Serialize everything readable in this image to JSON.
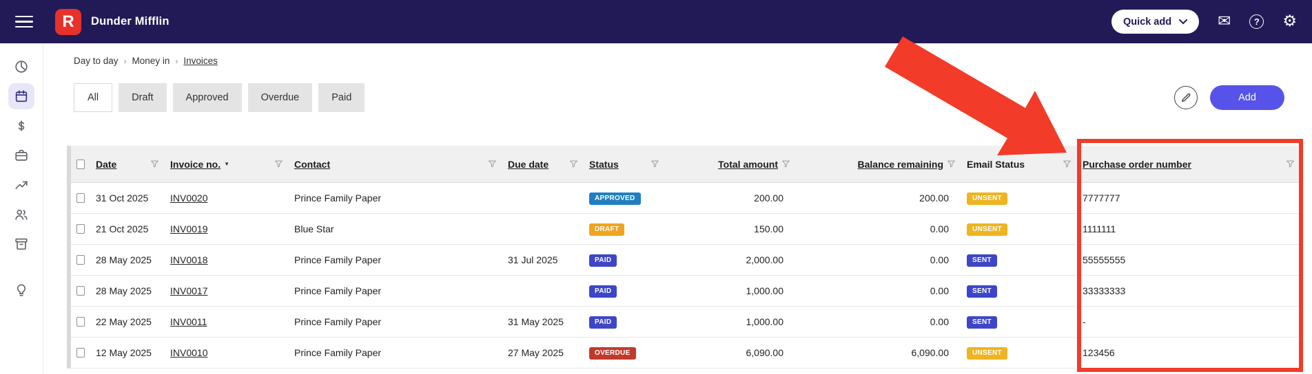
{
  "topbar": {
    "brand": "Dunder Mifflin",
    "logo_letter": "R",
    "quick_add_label": "Quick add",
    "icons": [
      "menu-icon",
      "mail-icon",
      "help-icon",
      "settings-icon"
    ]
  },
  "sidebar": {
    "items": [
      {
        "icon": "pie-chart-icon",
        "active": false
      },
      {
        "icon": "calendar-icon",
        "active": true
      },
      {
        "icon": "dollar-icon",
        "active": false
      },
      {
        "icon": "briefcase-icon",
        "active": false
      },
      {
        "icon": "trending-up-icon",
        "active": false
      },
      {
        "icon": "people-icon",
        "active": false
      },
      {
        "icon": "archive-icon",
        "active": false
      },
      {
        "icon": "lightbulb-icon",
        "active": false
      }
    ]
  },
  "breadcrumb": [
    "Day to day",
    "Money in",
    "Invoices"
  ],
  "tabs": [
    {
      "label": "All",
      "active": true
    },
    {
      "label": "Draft",
      "active": false
    },
    {
      "label": "Approved",
      "active": false
    },
    {
      "label": "Overdue",
      "active": false
    },
    {
      "label": "Paid",
      "active": false
    }
  ],
  "actions": {
    "add_label": "Add"
  },
  "table": {
    "columns": [
      {
        "key": "date",
        "label": "Date",
        "align": "left",
        "underline": true,
        "sorted": false
      },
      {
        "key": "invoice_no",
        "label": "Invoice no.",
        "align": "left",
        "underline": true,
        "sorted": true
      },
      {
        "key": "contact",
        "label": "Contact",
        "align": "left",
        "underline": true,
        "sorted": false
      },
      {
        "key": "due_date",
        "label": "Due date",
        "align": "left",
        "underline": true,
        "sorted": false
      },
      {
        "key": "status",
        "label": "Status",
        "align": "left",
        "underline": true,
        "sorted": false
      },
      {
        "key": "total",
        "label": "Total amount",
        "align": "right",
        "underline": true,
        "sorted": false
      },
      {
        "key": "balance",
        "label": "Balance remaining",
        "align": "right",
        "underline": true,
        "sorted": false
      },
      {
        "key": "email_status",
        "label": "Email Status",
        "align": "left",
        "underline": false,
        "sorted": false
      },
      {
        "key": "po",
        "label": "Purchase order number",
        "align": "left",
        "underline": true,
        "sorted": false
      }
    ],
    "rows": [
      {
        "date": "31 Oct 2025",
        "invoice_no": "INV0020",
        "contact": "Prince Family Paper",
        "due_date": "",
        "status": "APPROVED",
        "total": "200.00",
        "balance": "200.00",
        "email_status": "UNSENT",
        "po": "7777777"
      },
      {
        "date": "21 Oct 2025",
        "invoice_no": "INV0019",
        "contact": "Blue Star",
        "due_date": "",
        "status": "DRAFT",
        "total": "150.00",
        "balance": "0.00",
        "email_status": "UNSENT",
        "po": "1111111"
      },
      {
        "date": "28 May 2025",
        "invoice_no": "INV0018",
        "contact": "Prince Family Paper",
        "due_date": "31 Jul 2025",
        "status": "PAID",
        "total": "2,000.00",
        "balance": "0.00",
        "email_status": "SENT",
        "po": "55555555"
      },
      {
        "date": "28 May 2025",
        "invoice_no": "INV0017",
        "contact": "Prince Family Paper",
        "due_date": "",
        "status": "PAID",
        "total": "1,000.00",
        "balance": "0.00",
        "email_status": "SENT",
        "po": "33333333"
      },
      {
        "date": "22 May 2025",
        "invoice_no": "INV0011",
        "contact": "Prince Family Paper",
        "due_date": "31 May 2025",
        "status": "PAID",
        "total": "1,000.00",
        "balance": "0.00",
        "email_status": "SENT",
        "po": "-"
      },
      {
        "date": "12 May 2025",
        "invoice_no": "INV0010",
        "contact": "Prince Family Paper",
        "due_date": "27 May 2025",
        "status": "OVERDUE",
        "total": "6,090.00",
        "balance": "6,090.00",
        "email_status": "UNSENT",
        "po": "123456"
      }
    ]
  },
  "badge_colors": {
    "APPROVED": "#1f7fc2",
    "DRAFT": "#f0a41f",
    "PAID": "#3d46c8",
    "OVERDUE": "#c13a2c",
    "UNSENT": "#eeb421",
    "SENT": "#3d46c8"
  },
  "colors": {
    "topbar_bg": "#221a57",
    "logo_bg": "#e8312a",
    "accent": "#5753ea",
    "annotation": "#f23b28"
  }
}
